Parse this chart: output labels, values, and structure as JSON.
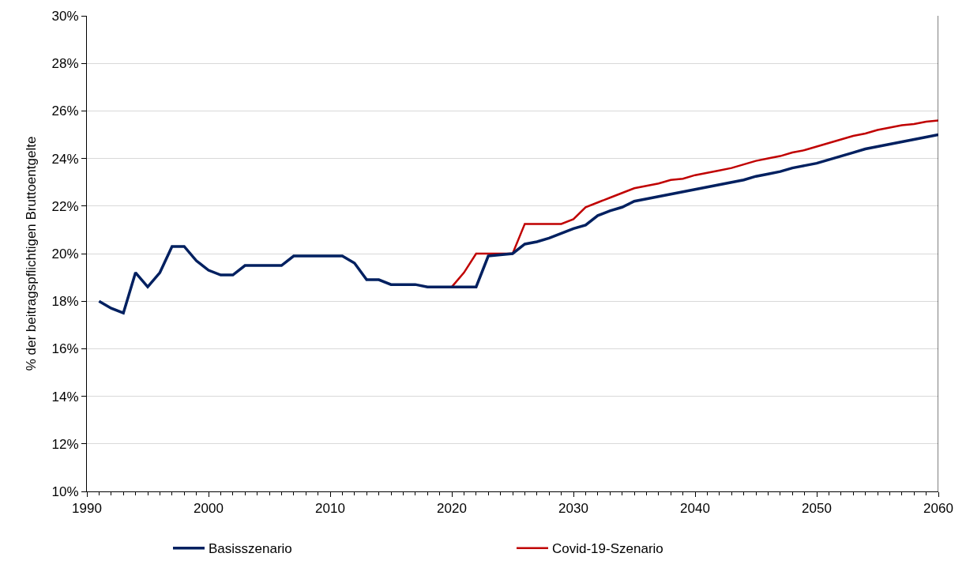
{
  "chart_data": {
    "type": "line",
    "ylabel": "% der beitragspflichtigen Bruttoentgelte",
    "xlim": [
      1990,
      2060
    ],
    "xticks": [
      1990,
      2000,
      2010,
      2020,
      2030,
      2040,
      2050,
      2060
    ],
    "ylim": [
      10,
      30
    ],
    "yticks": [
      {
        "value": 10,
        "label": "10%"
      },
      {
        "value": 12,
        "label": "12%"
      },
      {
        "value": 14,
        "label": "14%"
      },
      {
        "value": 16,
        "label": "16%"
      },
      {
        "value": 18,
        "label": "18%"
      },
      {
        "value": 20,
        "label": "20%"
      },
      {
        "value": 22,
        "label": "22%"
      },
      {
        "value": 24,
        "label": "24%"
      },
      {
        "value": 26,
        "label": "26%"
      },
      {
        "value": 28,
        "label": "28%"
      },
      {
        "value": 30,
        "label": "30%"
      }
    ],
    "grid": "y",
    "legend": "bottom",
    "marker": "none",
    "line_style": "solid",
    "series": [
      {
        "name": "Basisszenario",
        "color": "#002060",
        "x": [
          1991,
          1992,
          1993,
          1994,
          1995,
          1996,
          1997,
          1998,
          1999,
          2000,
          2001,
          2002,
          2003,
          2004,
          2005,
          2006,
          2007,
          2008,
          2009,
          2010,
          2011,
          2012,
          2013,
          2014,
          2015,
          2016,
          2017,
          2018,
          2019,
          2020,
          2021,
          2022,
          2023,
          2024,
          2025,
          2026,
          2027,
          2028,
          2029,
          2030,
          2031,
          2032,
          2033,
          2034,
          2035,
          2036,
          2037,
          2038,
          2039,
          2040,
          2041,
          2042,
          2043,
          2044,
          2045,
          2046,
          2047,
          2048,
          2049,
          2050,
          2051,
          2052,
          2053,
          2054,
          2055,
          2056,
          2057,
          2058,
          2059,
          2060
        ],
        "values": [
          18.0,
          17.7,
          17.5,
          19.2,
          18.6,
          19.2,
          20.3,
          20.3,
          19.7,
          19.3,
          19.1,
          19.1,
          19.5,
          19.5,
          19.5,
          19.5,
          19.9,
          19.9,
          19.9,
          19.9,
          19.9,
          19.6,
          18.9,
          18.9,
          18.7,
          18.7,
          18.7,
          18.6,
          18.6,
          18.6,
          18.6,
          18.6,
          19.9,
          19.95,
          20.0,
          20.4,
          20.5,
          20.65,
          20.85,
          21.05,
          21.2,
          21.6,
          21.8,
          21.95,
          22.2,
          22.3,
          22.4,
          22.5,
          22.6,
          22.7,
          22.8,
          22.9,
          23.0,
          23.1,
          23.25,
          23.35,
          23.45,
          23.6,
          23.7,
          23.8,
          23.95,
          24.1,
          24.25,
          24.4,
          24.5,
          24.6,
          24.7,
          24.8,
          24.9,
          25.0
        ]
      },
      {
        "name": "Covid-19-Szenario",
        "color": "#c00000",
        "x": [
          2020,
          2021,
          2022,
          2023,
          2024,
          2025,
          2026,
          2027,
          2028,
          2029,
          2030,
          2031,
          2032,
          2033,
          2034,
          2035,
          2036,
          2037,
          2038,
          2039,
          2040,
          2041,
          2042,
          2043,
          2044,
          2045,
          2046,
          2047,
          2048,
          2049,
          2050,
          2051,
          2052,
          2053,
          2054,
          2055,
          2056,
          2057,
          2058,
          2059,
          2060
        ],
        "values": [
          18.6,
          19.2,
          20.0,
          20.0,
          20.0,
          20.0,
          21.25,
          21.25,
          21.25,
          21.25,
          21.45,
          21.95,
          22.15,
          22.35,
          22.55,
          22.75,
          22.85,
          22.95,
          23.1,
          23.15,
          23.3,
          23.4,
          23.5,
          23.6,
          23.75,
          23.9,
          24.0,
          24.1,
          24.25,
          24.35,
          24.5,
          24.65,
          24.8,
          24.95,
          25.05,
          25.2,
          25.3,
          25.4,
          25.45,
          25.55,
          25.6
        ]
      }
    ]
  }
}
